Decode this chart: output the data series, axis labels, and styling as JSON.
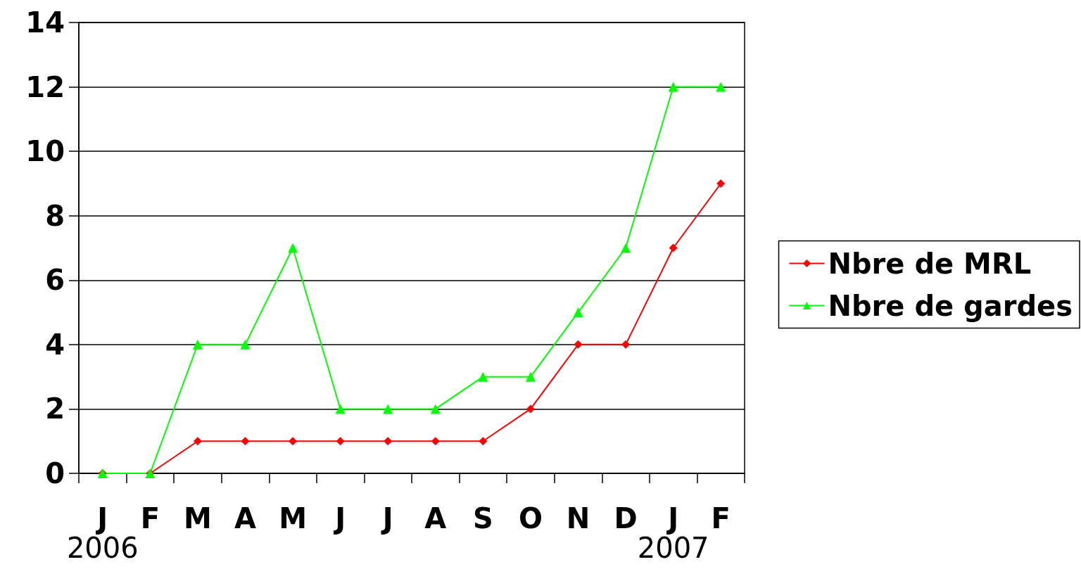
{
  "chart_data": {
    "type": "line",
    "categories": [
      "J\n2006",
      "F",
      "M",
      "A",
      "M",
      "J",
      "J",
      "A",
      "S",
      "O",
      "N",
      "D",
      "J\n2007",
      "F"
    ],
    "series": [
      {
        "name": "Nbre de MRL",
        "color": "#ff0000",
        "marker": "diamond",
        "values": [
          0,
          0,
          1,
          1,
          1,
          1,
          1,
          1,
          1,
          2,
          4,
          4,
          7,
          9
        ]
      },
      {
        "name": "Nbre de gardes",
        "color": "#00ff00",
        "marker": "triangle",
        "values": [
          0,
          0,
          4,
          4,
          7,
          2,
          2,
          2,
          3,
          3,
          5,
          7,
          12,
          12
        ]
      }
    ],
    "ylim": [
      0,
      14
    ],
    "yticks": [
      0,
      2,
      4,
      6,
      8,
      10,
      12,
      14
    ],
    "grid": "y",
    "legend": "right",
    "line_style": "solid"
  }
}
